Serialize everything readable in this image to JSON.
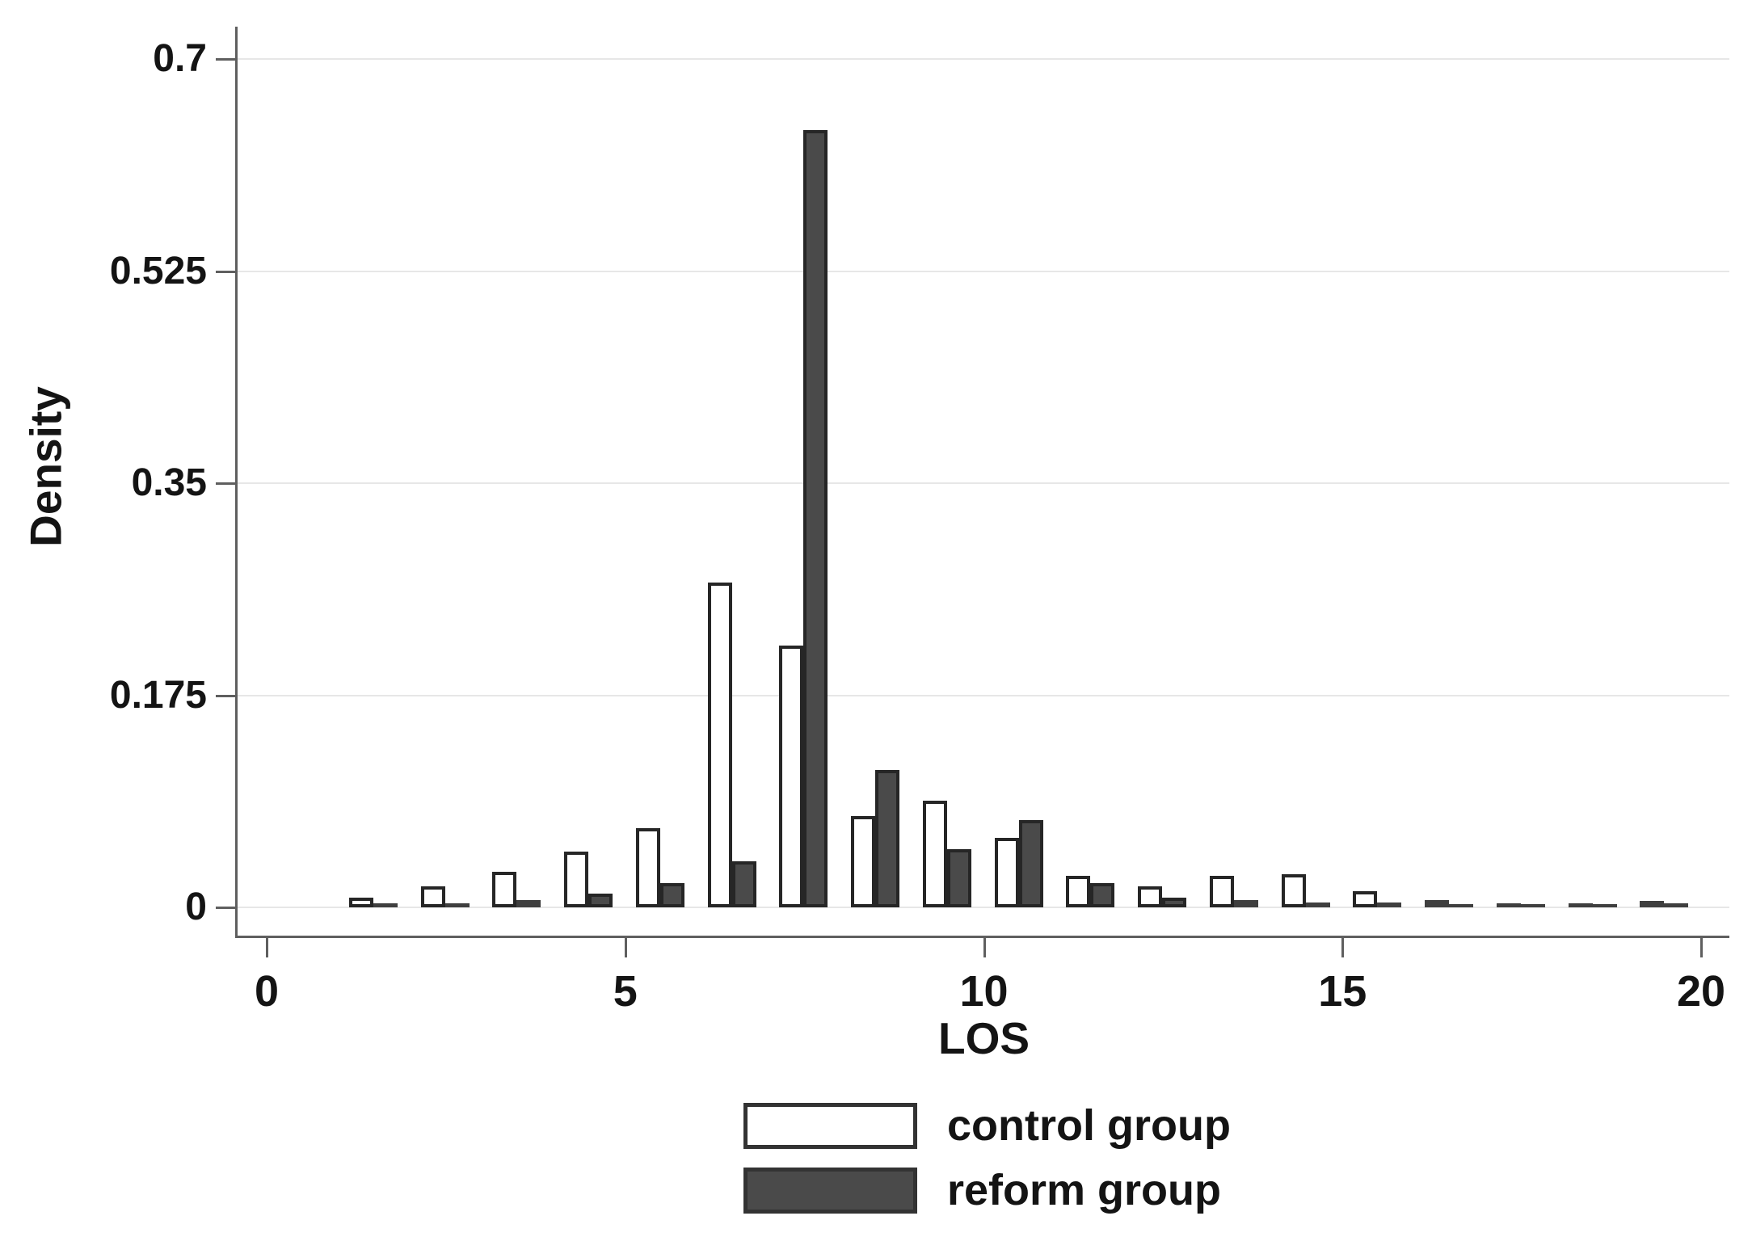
{
  "figure": {
    "background": "#ffffff",
    "title": ""
  },
  "chart_data": {
    "type": "bar",
    "subtype": "paired-histogram",
    "title": "",
    "xlabel": "LOS",
    "ylabel": "Density",
    "grid": "horizontal",
    "legend_position": "bottom-center",
    "xlim": [
      -0.45,
      20.6
    ],
    "ylim": [
      0,
      0.72
    ],
    "x_ticks": [
      0,
      5,
      10,
      15,
      20
    ],
    "x_tick_labels": [
      "0",
      "5",
      "10",
      "15",
      "20"
    ],
    "y_ticks": [
      0,
      0.175,
      0.35,
      0.525,
      0.7
    ],
    "y_tick_labels": [
      "0",
      "0.175",
      "0.35",
      "0.525",
      "0.7"
    ],
    "categories": [
      1,
      2,
      3,
      4,
      5,
      6,
      7,
      8,
      9,
      10,
      11,
      12,
      13,
      14,
      15,
      16,
      17,
      18,
      19
    ],
    "series": [
      {
        "name": "control group",
        "fill": "#ffffff",
        "outline": "#262626",
        "values": [
          0.008,
          0.017,
          0.029,
          0.046,
          0.065,
          0.268,
          0.216,
          0.075,
          0.088,
          0.057,
          0.026,
          0.017,
          0.026,
          0.027,
          0.013,
          0.006,
          0.003,
          0.003,
          0.005
        ]
      },
      {
        "name": "reform group",
        "fill": "#4a4a4a",
        "outline": "#262626",
        "values": [
          0.003,
          0.003,
          0.006,
          0.011,
          0.02,
          0.038,
          0.641,
          0.113,
          0.048,
          0.072,
          0.02,
          0.008,
          0.006,
          0.004,
          0.004,
          0.002,
          0.002,
          0.002,
          0.003
        ]
      }
    ],
    "colors": {
      "grid": "#e7e7e7",
      "axis": "#5f5f5f",
      "text": "#141414",
      "control_fill": "#ffffff",
      "reform_fill": "#4a4a4a",
      "bar_outline": "#262626"
    }
  }
}
